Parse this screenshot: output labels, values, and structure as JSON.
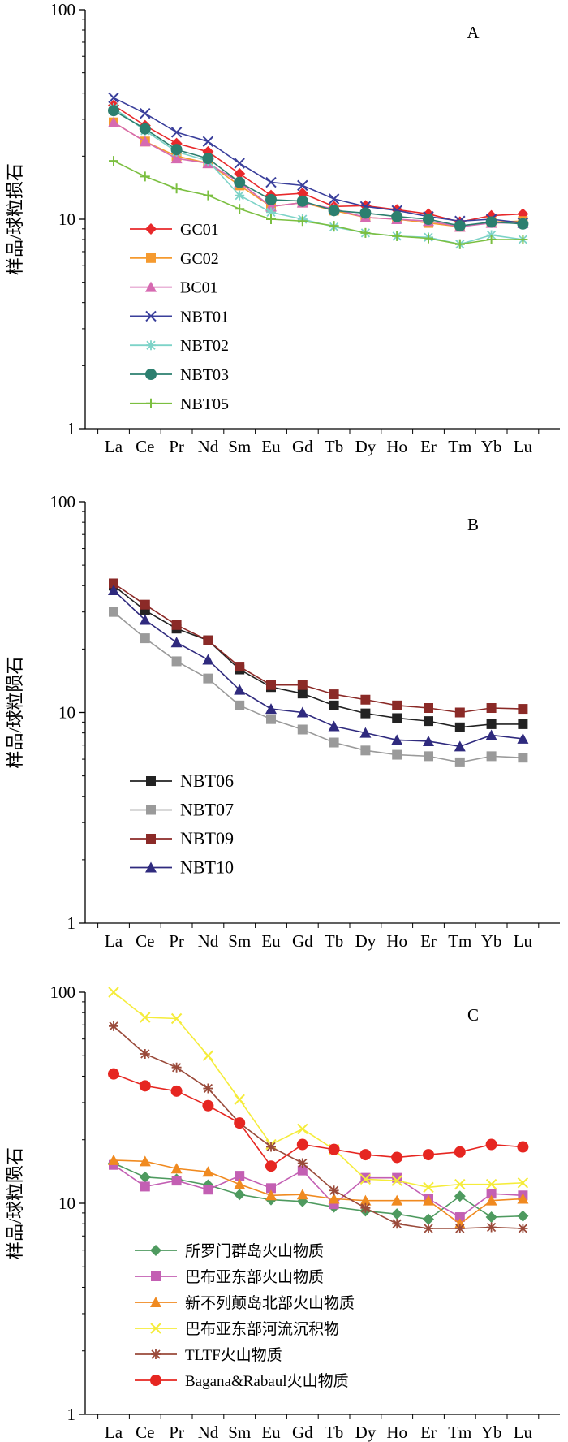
{
  "chart_data": [
    {
      "type": "line",
      "panel_label": "A",
      "ylabel": "样品/球粒损石",
      "yscale": "log",
      "ylim": [
        1,
        100
      ],
      "y_ticks": [
        "1",
        "10",
        "100"
      ],
      "categories": [
        "La",
        "Ce",
        "Pr",
        "Nd",
        "Sm",
        "Eu",
        "Gd",
        "Tb",
        "Dy",
        "Ho",
        "Er",
        "Tm",
        "Yb",
        "Lu"
      ],
      "legend_position": "left-bottom",
      "series": [
        {
          "name": "GC01",
          "color": "#e8292b",
          "marker": "diamond",
          "values": [
            35,
            28,
            23,
            21,
            16.5,
            13,
            13.3,
            11.5,
            11.6,
            11.1,
            10.6,
            9.7,
            10.4,
            10.6
          ]
        },
        {
          "name": "GC02",
          "color": "#f59a2f",
          "marker": "square",
          "values": [
            29,
            23.5,
            20,
            18.5,
            14.5,
            11.5,
            12,
            11,
            10.2,
            10,
            9.6,
            9.2,
            9.7,
            9.8
          ]
        },
        {
          "name": "BC01",
          "color": "#d66ab1",
          "marker": "triangle",
          "values": [
            29,
            23.5,
            19.5,
            18.5,
            15,
            11.5,
            12,
            11.2,
            10.2,
            10,
            9.8,
            9.2,
            9.6,
            9.6
          ]
        },
        {
          "name": "NBT01",
          "color": "#3a3f9b",
          "marker": "x",
          "values": [
            38,
            32,
            26,
            23.5,
            18.5,
            15,
            14.5,
            12.5,
            11.5,
            11,
            10.3,
            9.8,
            10,
            9.6
          ]
        },
        {
          "name": "NBT02",
          "color": "#7dd3c8",
          "marker": "star",
          "values": [
            34,
            26.5,
            21,
            19,
            13,
            10.8,
            10,
            9.2,
            8.6,
            8.3,
            8.2,
            7.6,
            8.4,
            8
          ]
        },
        {
          "name": "NBT03",
          "color": "#2c7f6f",
          "marker": "circle",
          "values": [
            33,
            27,
            21.5,
            19.5,
            15,
            12.4,
            12.2,
            11,
            10.7,
            10.3,
            10,
            9.3,
            9.7,
            9.5
          ]
        },
        {
          "name": "NBT05",
          "color": "#7bbf40",
          "marker": "plus",
          "values": [
            19,
            16,
            14,
            13,
            11.2,
            10,
            9.8,
            9.3,
            8.6,
            8.3,
            8.1,
            7.6,
            8,
            8
          ]
        }
      ]
    },
    {
      "type": "line",
      "panel_label": "B",
      "ylabel": "样品/球粒陨石",
      "yscale": "log",
      "ylim": [
        1,
        100
      ],
      "y_ticks": [
        "1",
        "10",
        "100"
      ],
      "categories": [
        "La",
        "Ce",
        "Pr",
        "Nd",
        "Sm",
        "Eu",
        "Gd",
        "Tb",
        "Dy",
        "Ho",
        "Er",
        "Tm",
        "Yb",
        "Lu"
      ],
      "legend_position": "left-bottom",
      "series": [
        {
          "name": "NBT06",
          "color": "#222222",
          "marker": "square",
          "values": [
            40,
            30.5,
            25,
            22,
            16,
            13.2,
            12.3,
            10.8,
            9.9,
            9.4,
            9.1,
            8.5,
            8.8,
            8.8
          ]
        },
        {
          "name": "NBT07",
          "color": "#9a9a9a",
          "marker": "square",
          "values": [
            30,
            22.5,
            17.5,
            14.5,
            10.8,
            9.3,
            8.3,
            7.2,
            6.6,
            6.3,
            6.2,
            5.8,
            6.2,
            6.1
          ]
        },
        {
          "name": "NBT09",
          "color": "#8b2a27",
          "marker": "square",
          "values": [
            41,
            32.5,
            26,
            22,
            16.5,
            13.5,
            13.5,
            12.2,
            11.5,
            10.8,
            10.5,
            10,
            10.5,
            10.4
          ]
        },
        {
          "name": "NBT10",
          "color": "#2f2a7e",
          "marker": "triangle",
          "values": [
            38,
            27.5,
            21.5,
            17.8,
            12.8,
            10.4,
            10,
            8.6,
            8,
            7.4,
            7.3,
            6.9,
            7.8,
            7.5
          ]
        }
      ]
    },
    {
      "type": "line",
      "panel_label": "C",
      "ylabel": "样品/球粒陨石",
      "yscale": "log",
      "ylim": [
        1,
        100
      ],
      "y_ticks": [
        "1",
        "10",
        "100"
      ],
      "categories": [
        "La",
        "Ce",
        "Pr",
        "Nd",
        "Sm",
        "Eu",
        "Gd",
        "Tb",
        "Dy",
        "Ho",
        "Er",
        "Tm",
        "Yb",
        "Lu"
      ],
      "legend_position": "left-bottom",
      "series": [
        {
          "name": "所罗门群岛火山物质",
          "color": "#4e9a5f",
          "marker": "diamond",
          "values": [
            15.5,
            13.3,
            13,
            12.2,
            11,
            10.4,
            10.2,
            9.6,
            9.2,
            8.9,
            8.4,
            10.8,
            8.6,
            8.7
          ]
        },
        {
          "name": "巴布亚东部火山物质",
          "color": "#c35fb3",
          "marker": "square",
          "values": [
            15.2,
            12,
            12.8,
            11.6,
            13.5,
            11.8,
            14.3,
            9.9,
            13.2,
            13.2,
            10.5,
            8.6,
            11.1,
            10.9
          ]
        },
        {
          "name": "新不列颠岛北部火山物质",
          "color": "#f08a20",
          "marker": "triangle",
          "values": [
            16,
            15.8,
            14.6,
            14.1,
            12.3,
            10.9,
            11,
            10.5,
            10.3,
            10.3,
            10.3,
            8,
            10.3,
            10.5
          ]
        },
        {
          "name": "巴布亚东部河流沉积物",
          "color": "#f5ec3a",
          "marker": "x",
          "values": [
            100,
            76,
            75,
            50,
            31,
            19,
            22.5,
            18,
            13,
            12.8,
            11.9,
            12.3,
            12.3,
            12.5
          ]
        },
        {
          "name": "TLTF火山物质",
          "color": "#9a4a3a",
          "marker": "asterisk",
          "values": [
            69,
            51,
            44,
            35,
            24,
            18.5,
            15.5,
            11.5,
            9.5,
            8,
            7.6,
            7.6,
            7.7,
            7.6
          ]
        },
        {
          "name": "Bagana&Rabaul火山物质",
          "color": "#e62621",
          "marker": "circle",
          "values": [
            41,
            36,
            34,
            29,
            24,
            15,
            19,
            18,
            17,
            16.5,
            17,
            17.5,
            19,
            18.5
          ]
        }
      ]
    }
  ]
}
